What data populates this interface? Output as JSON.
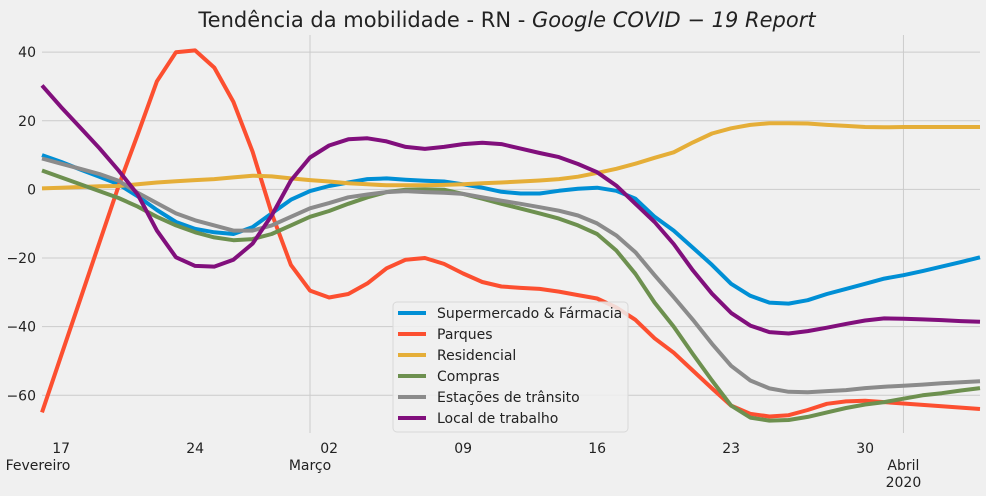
{
  "chart_data": {
    "type": "line",
    "title_prefix": "Tendência da mobilidade - RN - ",
    "title_italic": "Google COVID − 19 Report",
    "xlabel": "",
    "ylabel": "",
    "x_start": "2020-02-16",
    "x_end": "2020-04-05",
    "ylim": [
      -71,
      45
    ],
    "yticks": [
      -60,
      -40,
      -20,
      0,
      20,
      40
    ],
    "ytick_labels": [
      "−60",
      "−40",
      "−20",
      "0",
      "20",
      "40"
    ],
    "xticks_minor": [
      {
        "date": "2020-02-17",
        "label": "17"
      },
      {
        "date": "2020-02-24",
        "label": "24"
      },
      {
        "date": "2020-03-02",
        "label": "02"
      },
      {
        "date": "2020-03-09",
        "label": "09"
      },
      {
        "date": "2020-03-16",
        "label": "16"
      },
      {
        "date": "2020-03-23",
        "label": "23"
      },
      {
        "date": "2020-03-30",
        "label": "30"
      }
    ],
    "xticks_major": [
      {
        "date": "2020-02-16",
        "label": "Fevereiro",
        "label2": ""
      },
      {
        "date": "2020-03-01",
        "label": "Março",
        "label2": ""
      },
      {
        "date": "2020-04-01",
        "label": "Abril",
        "label2": "2020"
      }
    ],
    "grid": true,
    "legend_position": "lower-center",
    "series": [
      {
        "name": "Supermercado & Fármacia",
        "color": "#008fd5",
        "values": [
          10,
          8,
          5.8,
          3.7,
          1.5,
          -2,
          -6,
          -9.5,
          -11.5,
          -12.5,
          -13,
          -11,
          -7,
          -3,
          -0.5,
          1,
          2,
          3,
          3.2,
          2.8,
          2.5,
          2.3,
          1.5,
          0.5,
          -0.7,
          -1.2,
          -1.2,
          -0.4,
          0.2,
          0.5,
          -0.4,
          -2.7,
          -8,
          -12,
          -17,
          -22,
          -27.5,
          -31,
          -33,
          -33.3,
          -32.3,
          -30.5,
          -29,
          -27.5,
          -26,
          -25,
          -23.8,
          -22.5,
          -21.2,
          -19.8
        ]
      },
      {
        "name": "Parques",
        "color": "#fc4f30",
        "values": [
          -65,
          -48.5,
          -32,
          -15.5,
          1,
          16,
          31.5,
          40,
          40.5,
          35.5,
          25.5,
          11,
          -7,
          -22,
          -29.5,
          -31.5,
          -30.5,
          -27.4,
          -23,
          -20.5,
          -20,
          -21.7,
          -24.5,
          -27,
          -28.3,
          -28.7,
          -29,
          -29.8,
          -30.8,
          -31.8,
          -34.4,
          -38,
          -43.4,
          -47.6,
          -52.8,
          -58,
          -63,
          -65.4,
          -66.2,
          -65.8,
          -64.3,
          -62.5,
          -61.8,
          -61.6,
          -62,
          -62.4,
          -62.8,
          -63.2,
          -63.6,
          -64
        ]
      },
      {
        "name": "Residencial",
        "color": "#e5ae38",
        "values": [
          0.3,
          0.5,
          0.7,
          0.9,
          1,
          1.5,
          2,
          2.4,
          2.7,
          3,
          3.5,
          4,
          3.8,
          3.2,
          2.7,
          2.3,
          1.8,
          1.5,
          1.2,
          1.2,
          1.2,
          1.3,
          1.5,
          1.8,
          2,
          2.3,
          2.6,
          3,
          3.7,
          4.8,
          6,
          7.5,
          9.2,
          10.8,
          13.7,
          16.3,
          17.8,
          18.8,
          19.3,
          19.3,
          19.2,
          18.8,
          18.5,
          18.2,
          18.1,
          18.2,
          18.2,
          18.2,
          18.2,
          18.2
        ]
      },
      {
        "name": "Compras",
        "color": "#6d904f",
        "values": [
          5.5,
          3.5,
          1.5,
          -0.5,
          -2.5,
          -5,
          -8,
          -10.5,
          -12.5,
          -14,
          -14.8,
          -14.5,
          -13,
          -10.5,
          -8,
          -6.3,
          -4.2,
          -2.3,
          -0.8,
          -0.1,
          0,
          -0.1,
          -1.3,
          -2.7,
          -4.2,
          -5.6,
          -7,
          -8.5,
          -10.5,
          -13,
          -17.8,
          -24.6,
          -33,
          -40,
          -48,
          -55.7,
          -63,
          -66.5,
          -67.4,
          -67.2,
          -66.3,
          -65,
          -63.7,
          -62.7,
          -62,
          -61,
          -60,
          -59.4,
          -58.6,
          -57.9
        ]
      },
      {
        "name": "Estações de trânsito",
        "color": "#8b8b8b",
        "values": [
          9,
          7.5,
          6,
          4.5,
          2.5,
          -1,
          -4,
          -7,
          -9,
          -10.5,
          -12,
          -12,
          -10.5,
          -8,
          -5.5,
          -4,
          -2.3,
          -1.5,
          -0.8,
          -0.5,
          -0.8,
          -1,
          -1.3,
          -2.3,
          -3.3,
          -4.2,
          -5.2,
          -6.2,
          -7.6,
          -9.9,
          -13.4,
          -18.3,
          -25,
          -31.4,
          -38,
          -45,
          -51.4,
          -55.7,
          -58,
          -59,
          -59.1,
          -58.8,
          -58.5,
          -57.9,
          -57.5,
          -57.2,
          -56.9,
          -56.5,
          -56.2,
          -55.9
        ]
      },
      {
        "name": "Local de trabalho",
        "color": "#810f7c",
        "values": [
          30.3,
          24,
          18,
          12,
          5.5,
          -1.5,
          -12,
          -19.8,
          -22.3,
          -22.5,
          -20.5,
          -15.8,
          -7.6,
          2.6,
          9.3,
          12.8,
          14.6,
          14.9,
          14,
          12.4,
          11.8,
          12.4,
          13.2,
          13.6,
          13.2,
          11.9,
          10.6,
          9.4,
          7.4,
          5,
          1.1,
          -4.2,
          -9.5,
          -15.9,
          -23.6,
          -30.4,
          -36,
          -39.7,
          -41.6,
          -42,
          -41.3,
          -40.3,
          -39.2,
          -38.2,
          -37.6,
          -37.7,
          -37.9,
          -38.1,
          -38.4,
          -38.6
        ]
      }
    ]
  }
}
